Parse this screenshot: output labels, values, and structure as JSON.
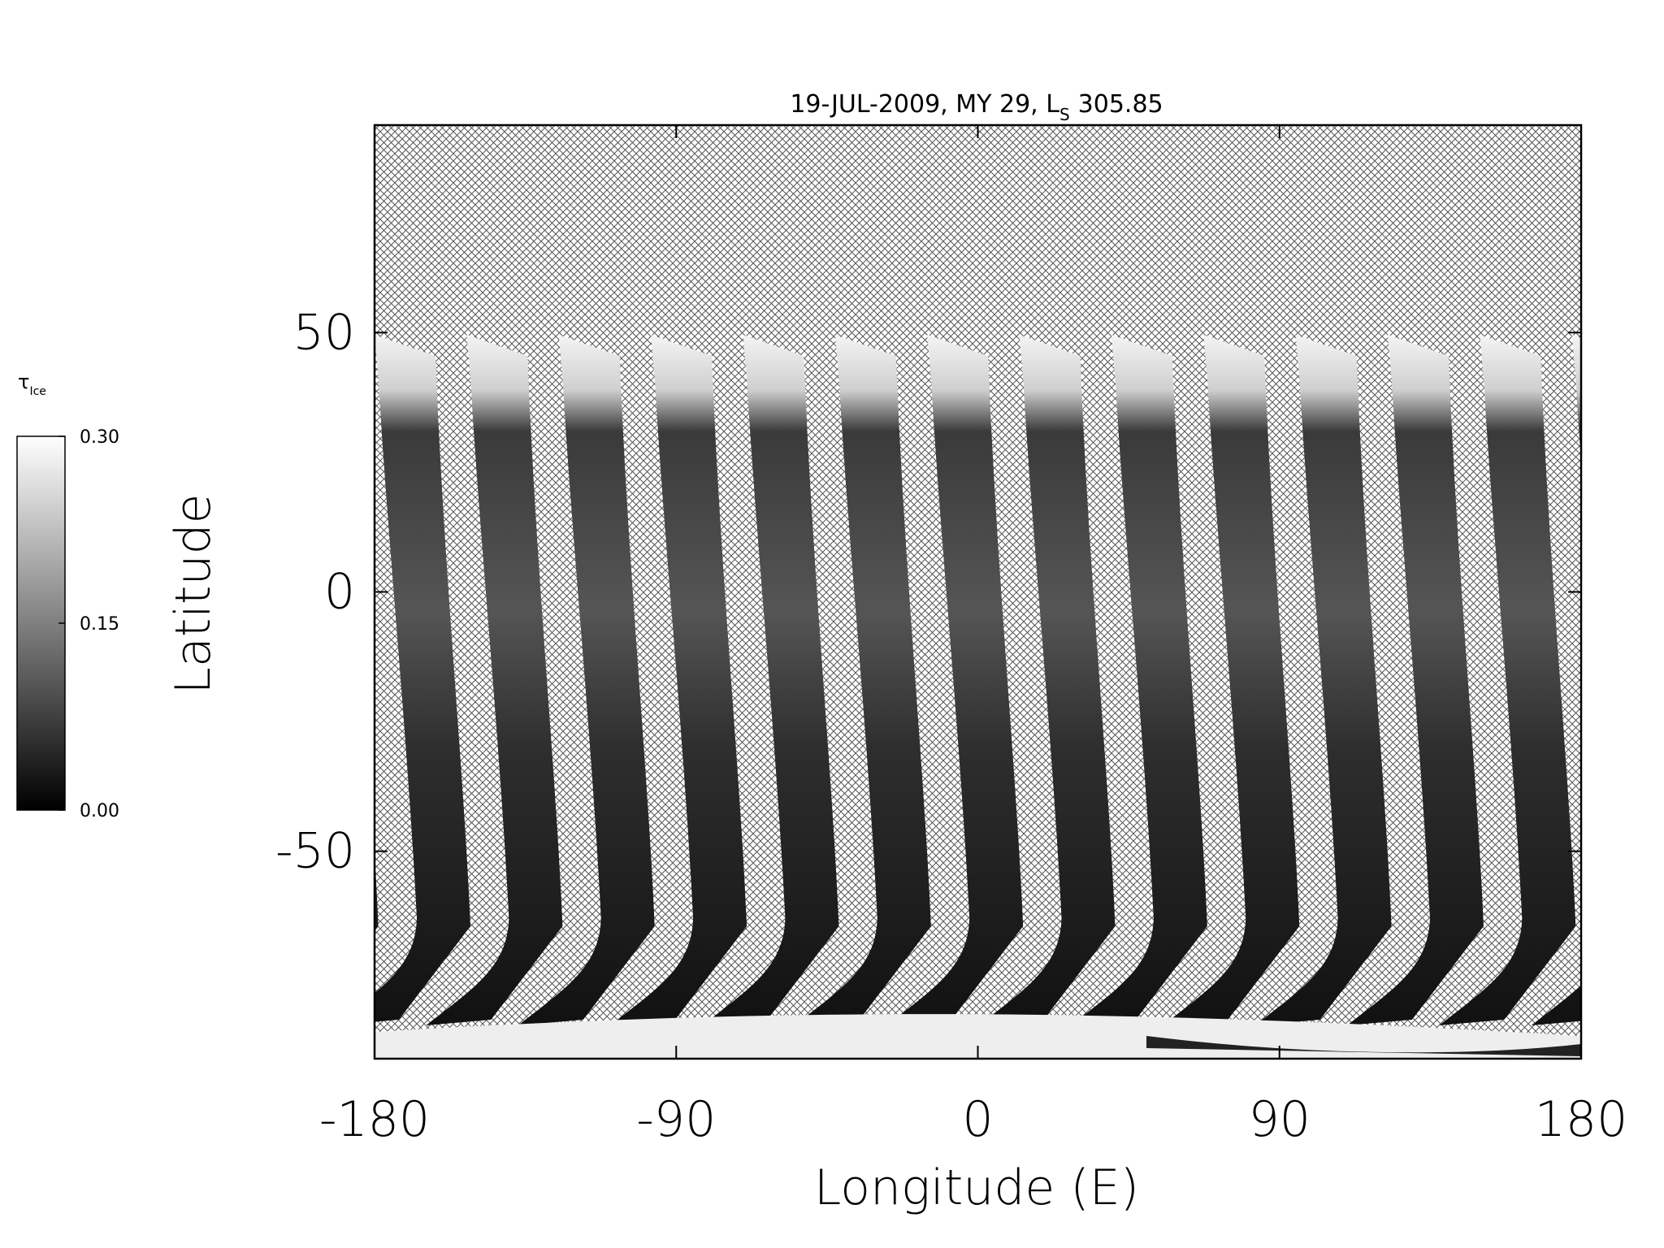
{
  "chart_data": {
    "type": "map",
    "title": {
      "text": "19-JUL-2009, MY 29,  L",
      "subscript": "S",
      "suffix": "305.85"
    },
    "xlabel": "Longitude (E)",
    "ylabel": "Latitude",
    "xlim": [
      -180,
      180
    ],
    "xticks": [
      -180,
      -90,
      0,
      90,
      180
    ],
    "ylim": [
      -90,
      90
    ],
    "yticks": [
      -50,
      0,
      50
    ],
    "colorbar": {
      "label": "τ",
      "label_subscript": "Ice",
      "lim": [
        0,
        0.3
      ],
      "ticks": [
        {
          "value": 0.3,
          "label": "0.30"
        },
        {
          "value": 0.15,
          "label": "0.15"
        },
        {
          "value": 0,
          "label": "0.00"
        }
      ]
    }
  }
}
